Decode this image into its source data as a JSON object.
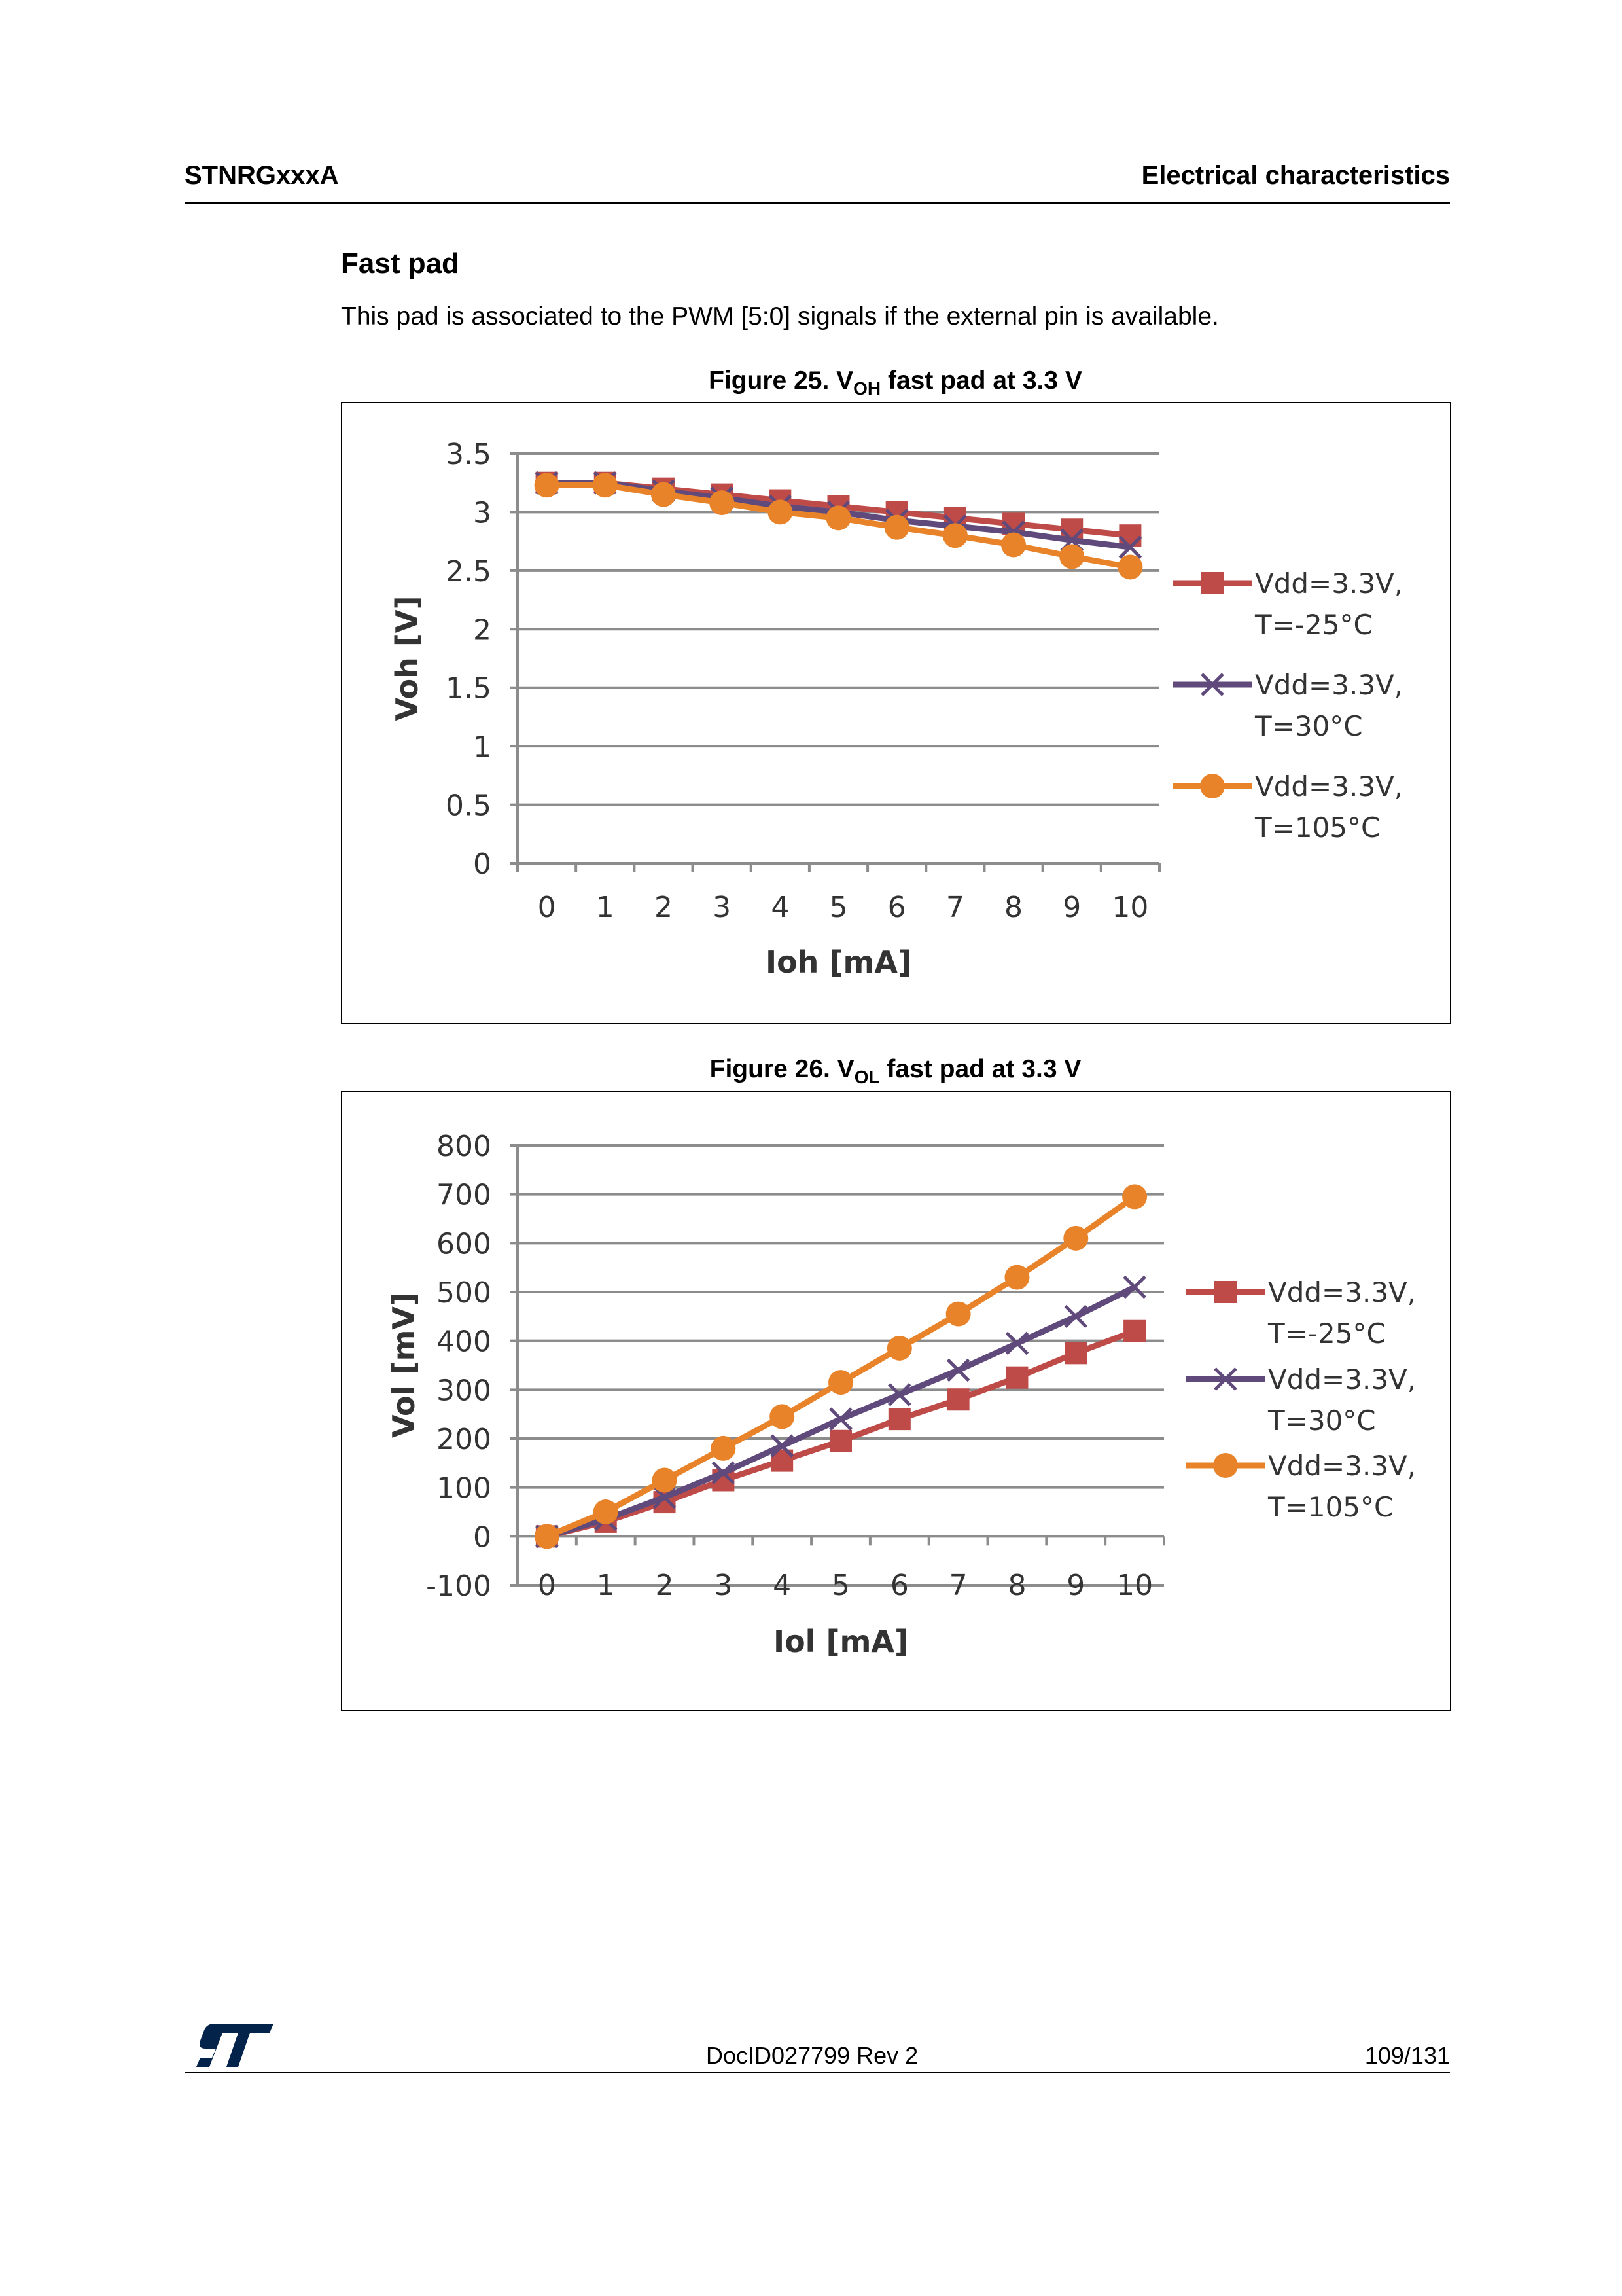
{
  "header": {
    "left": "STNRGxxxA",
    "right": "Electrical characteristics"
  },
  "section": {
    "title": "Fast pad",
    "text": "This pad is associated to the PWM [5:0] signals if the external pin is available."
  },
  "figures": [
    {
      "caption_prefix": "Figure 25. V",
      "caption_sub": "OH",
      "caption_suffix": " fast pad at 3.3 V"
    },
    {
      "caption_prefix": "Figure 26. V",
      "caption_sub": "OL",
      "caption_suffix": " fast pad at 3.3 V"
    }
  ],
  "footer": {
    "logo": "ST",
    "doc": "DocID027799 Rev 2",
    "page": "109/131"
  },
  "chart_data": [
    {
      "type": "line",
      "title": "VOH fast pad at 3.3 V",
      "xlabel": "Ioh [mA]",
      "ylabel": "Voh [V]",
      "x": [
        0,
        1,
        2,
        3,
        4,
        5,
        6,
        7,
        8,
        9,
        10
      ],
      "ylim": [
        0,
        3.5
      ],
      "yticks": [
        "0",
        "0.5",
        "1",
        "1.5",
        "2",
        "2.5",
        "3",
        "3.5"
      ],
      "ytick_values": [
        0,
        0.5,
        1,
        1.5,
        2,
        2.5,
        3,
        3.5
      ],
      "grid": true,
      "legend": "right",
      "series": [
        {
          "name": "Vdd=3.3V, T=-25°C",
          "label1": "Vdd=3.3V,",
          "label2": "T=-25°C",
          "color": "#be4b48",
          "marker": "square",
          "values": [
            3.25,
            3.25,
            3.2,
            3.15,
            3.1,
            3.05,
            3.0,
            2.95,
            2.9,
            2.85,
            2.8
          ]
        },
        {
          "name": "Vdd=3.3V, T=30°C",
          "label1": "Vdd=3.3V,",
          "label2": "T=30°C",
          "color": "#604a7b",
          "marker": "x",
          "values": [
            3.25,
            3.25,
            3.18,
            3.12,
            3.05,
            3.0,
            2.93,
            2.88,
            2.83,
            2.76,
            2.7
          ]
        },
        {
          "name": "Vdd=3.3V, T=105°C",
          "label1": "Vdd=3.3V,",
          "label2": "T=105°C",
          "color": "#e8832a",
          "marker": "circle",
          "values": [
            3.23,
            3.23,
            3.15,
            3.08,
            3.0,
            2.95,
            2.87,
            2.8,
            2.72,
            2.62,
            2.53
          ]
        }
      ]
    },
    {
      "type": "line",
      "title": "VOL fast pad at 3.3 V",
      "xlabel": "Iol [mA]",
      "ylabel": "Vol [mV]",
      "x": [
        0,
        1,
        2,
        3,
        4,
        5,
        6,
        7,
        8,
        9,
        10
      ],
      "ylim": [
        -100,
        800
      ],
      "yticks": [
        "-100",
        "0",
        "100",
        "200",
        "300",
        "400",
        "500",
        "600",
        "700",
        "800"
      ],
      "ytick_values": [
        -100,
        0,
        100,
        200,
        300,
        400,
        500,
        600,
        700,
        800
      ],
      "grid": true,
      "legend": "right",
      "series": [
        {
          "name": "Vdd=3.3V, T=-25°C",
          "label1": "Vdd=3.3V,",
          "label2": "T=-25°C",
          "color": "#be4b48",
          "marker": "square",
          "values": [
            0,
            30,
            70,
            115,
            155,
            195,
            240,
            280,
            325,
            375,
            420
          ]
        },
        {
          "name": "Vdd=3.3V, T=30°C",
          "label1": "Vdd=3.3V,",
          "label2": "T=30°C",
          "color": "#604a7b",
          "marker": "x",
          "values": [
            0,
            35,
            80,
            130,
            185,
            240,
            290,
            340,
            395,
            450,
            510
          ]
        },
        {
          "name": "Vdd=3.3V, T=105°C",
          "label1": "Vdd=3.3V,",
          "label2": "T=105°C",
          "color": "#e8832a",
          "marker": "circle",
          "values": [
            0,
            50,
            115,
            180,
            245,
            315,
            385,
            455,
            530,
            610,
            695
          ]
        }
      ]
    }
  ]
}
